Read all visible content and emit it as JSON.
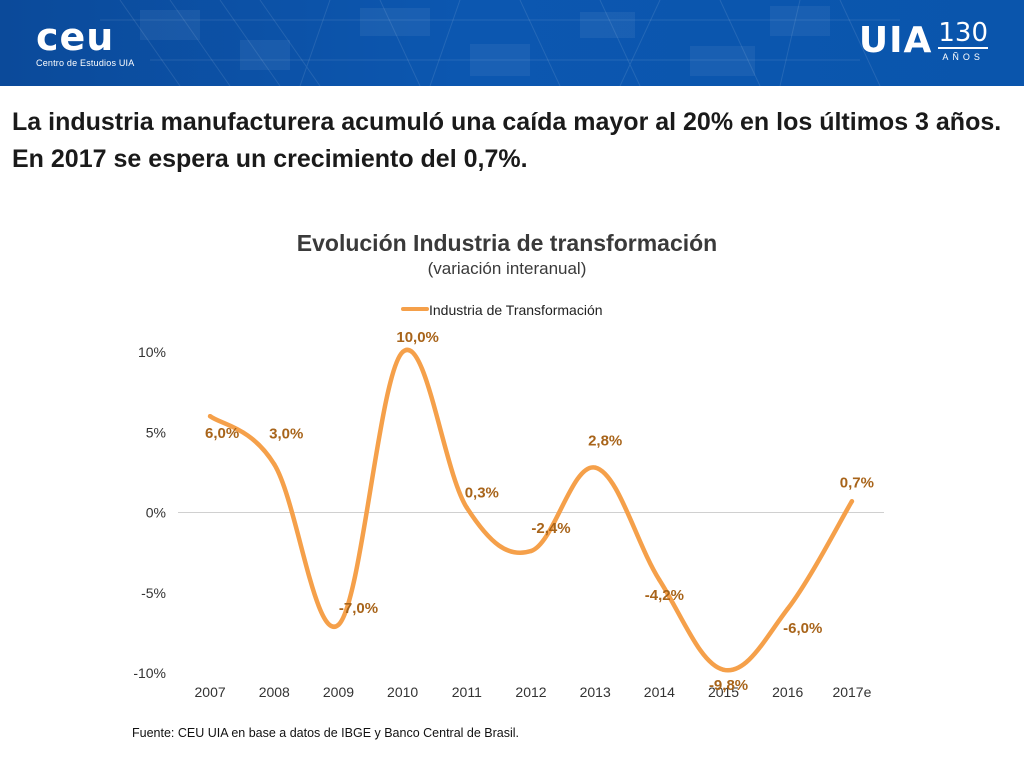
{
  "header": {
    "logo_left": {
      "mark": "ceu",
      "subtitle": "Centro de Estudios UIA"
    },
    "logo_right": {
      "mark": "UIA",
      "number": "130",
      "word": "AÑOS"
    }
  },
  "headline": "La industria manufacturera acumuló una caída mayor al 20% en los últimos 3 años. En 2017 se espera un crecimiento del 0,7%.",
  "source": "Fuente: CEU UIA en base a datos de IBGE y Banco Central de Brasil.",
  "colors": {
    "line": "#f5a04a",
    "label": "#a8641a",
    "header": "#0c57b0",
    "axis_text": "#333333"
  },
  "chart_data": {
    "type": "line",
    "title": "Evolución Industria de transformación",
    "subtitle": "(variación interanual)",
    "xlabel": "",
    "ylabel": "",
    "categories": [
      "2007",
      "2008",
      "2009",
      "2010",
      "2011",
      "2012",
      "2013",
      "2014",
      "2015",
      "2016",
      "2017e"
    ],
    "series": [
      {
        "name": "Industria de Transformación",
        "values": [
          6.0,
          3.0,
          -7.0,
          10.0,
          0.3,
          -2.4,
          2.8,
          -4.2,
          -9.8,
          -6.0,
          0.7
        ],
        "labels": [
          "6,0%",
          "3,0%",
          "-7,0%",
          "10,0%",
          "0,3%",
          "-2,4%",
          "2,8%",
          "-4,2%",
          "-9,8%",
          "-6,0%",
          "0,7%"
        ]
      }
    ],
    "y_ticks": [
      10,
      5,
      0,
      -5,
      -10
    ],
    "y_tick_labels": [
      "10%",
      "5%",
      "0%",
      "-5%",
      "-10%"
    ],
    "ylim": [
      -10,
      10
    ],
    "legend_position": "top-center",
    "grid": false
  }
}
